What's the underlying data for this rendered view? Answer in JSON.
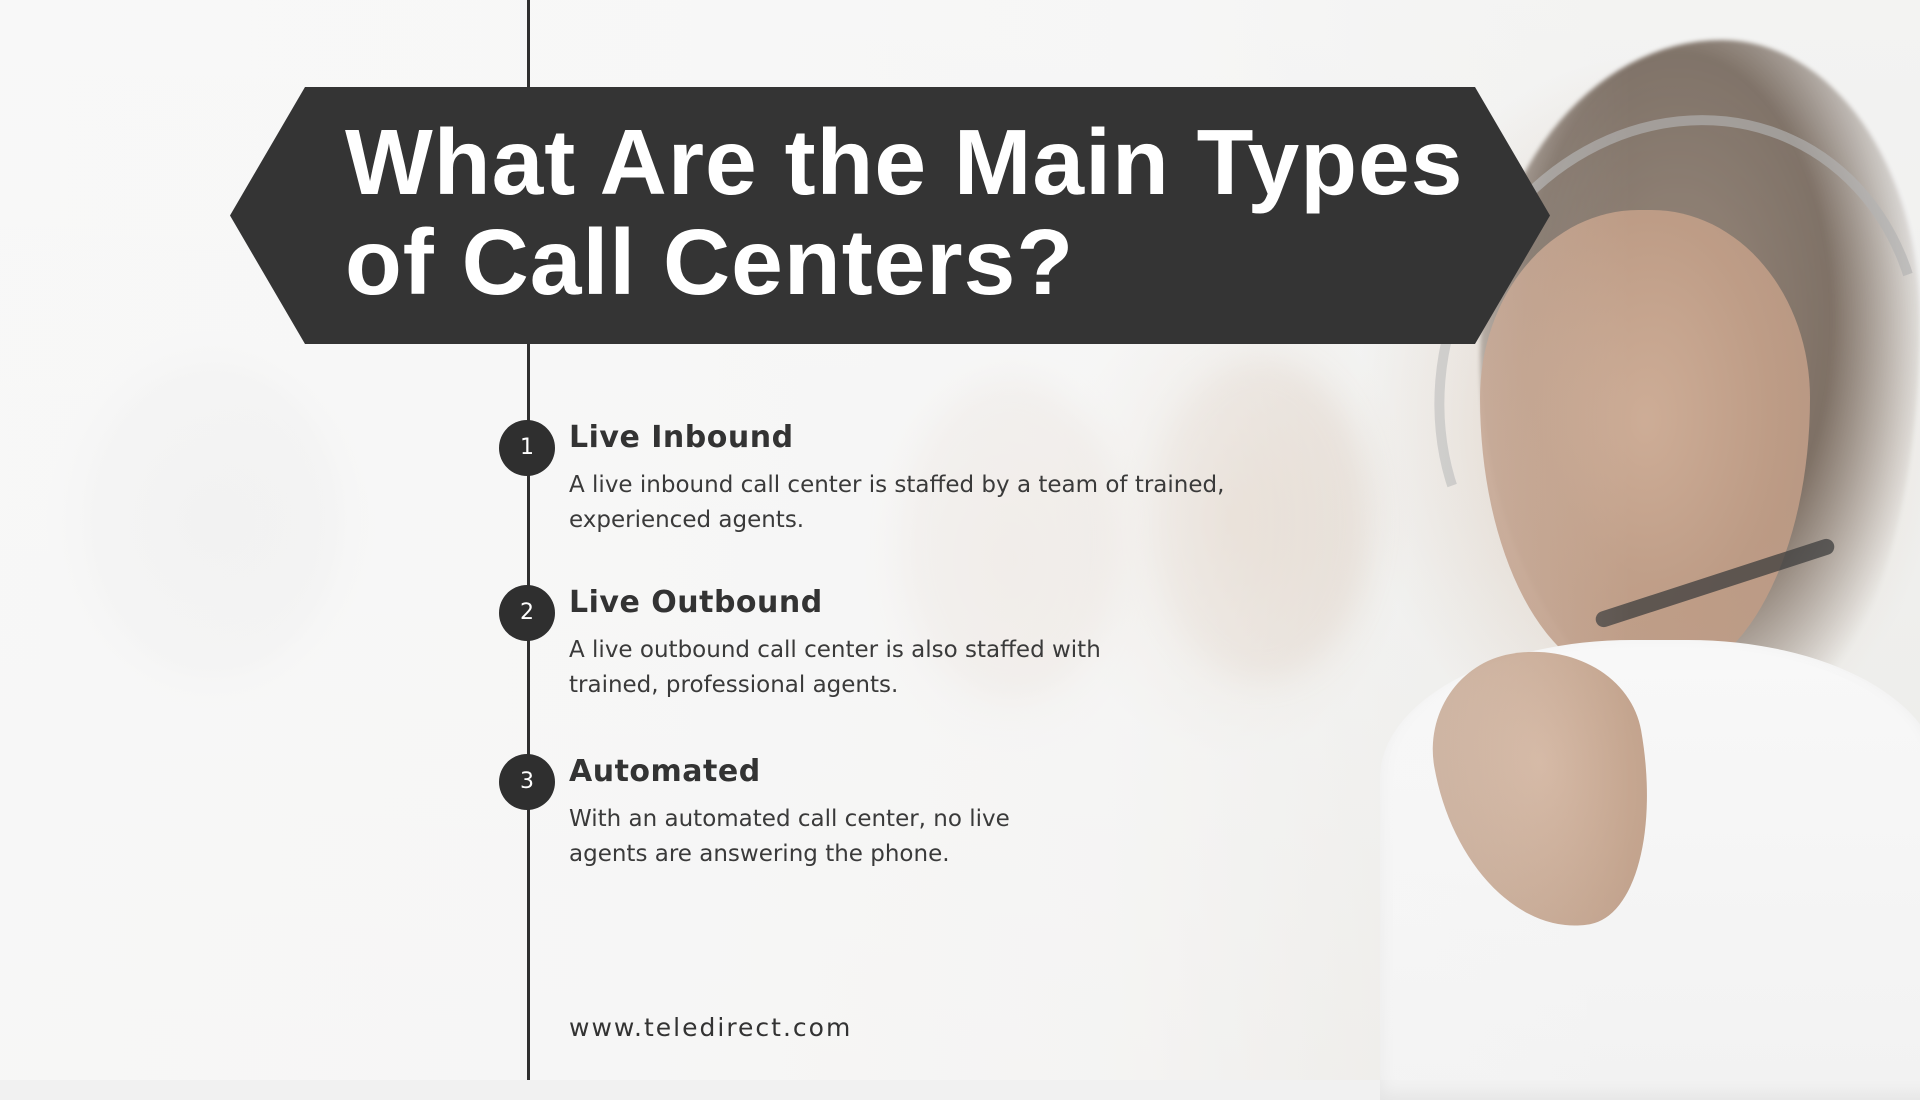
{
  "title": "What Are the Main Types of Call Centers?",
  "steps": [
    {
      "number": "1",
      "title": "Live Inbound",
      "description": "A live inbound call center is staffed by a team of trained, experienced agents."
    },
    {
      "number": "2",
      "title": "Live Outbound",
      "description": "A live outbound call center is also staffed with trained, professional agents."
    },
    {
      "number": "3",
      "title": "Automated",
      "description": "With an automated call center, no live agents are answering the phone."
    }
  ],
  "website": "www.teledirect.com",
  "colors": {
    "banner": "#343434",
    "text": "#333333",
    "badge": "#2f2f2f"
  }
}
